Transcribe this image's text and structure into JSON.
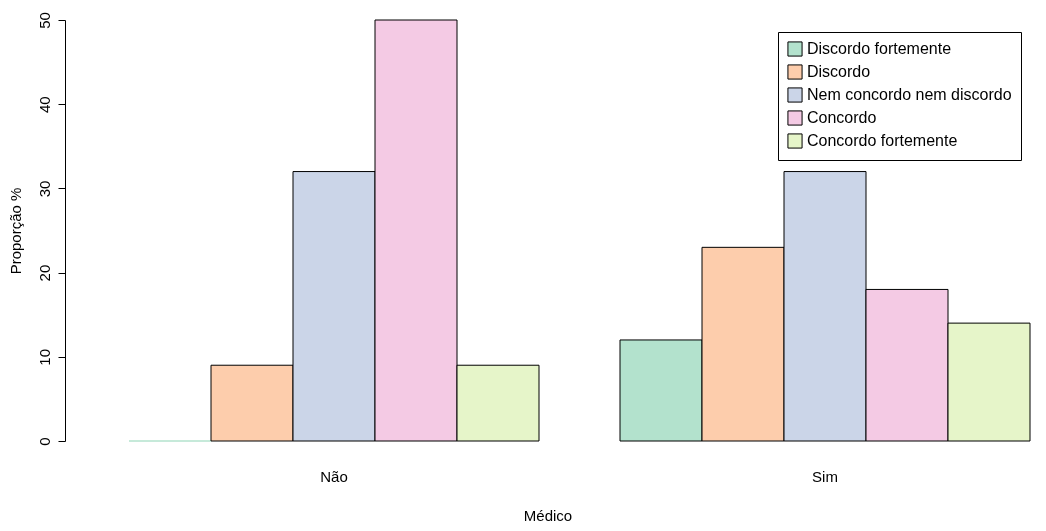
{
  "chart_data": {
    "type": "bar",
    "xlabel": "Médico",
    "ylabel": "Proporção %",
    "categories": [
      "Não",
      "Sim"
    ],
    "series": [
      {
        "name": "Discordo fortemente",
        "color": "#b3e2cd",
        "values": [
          0,
          12
        ]
      },
      {
        "name": "Discordo",
        "color": "#fdcdac",
        "values": [
          9,
          23
        ]
      },
      {
        "name": "Nem concordo nem discordo",
        "color": "#cbd5e8",
        "values": [
          32,
          32
        ]
      },
      {
        "name": "Concordo",
        "color": "#f4cae4",
        "values": [
          50,
          18
        ]
      },
      {
        "name": "Concordo fortemente",
        "color": "#e6f5c9",
        "values": [
          9,
          14
        ]
      }
    ],
    "ylim": [
      0,
      50
    ],
    "yticks": [
      0,
      10,
      20,
      30,
      40,
      50
    ],
    "grid": false,
    "legend": "top right"
  }
}
